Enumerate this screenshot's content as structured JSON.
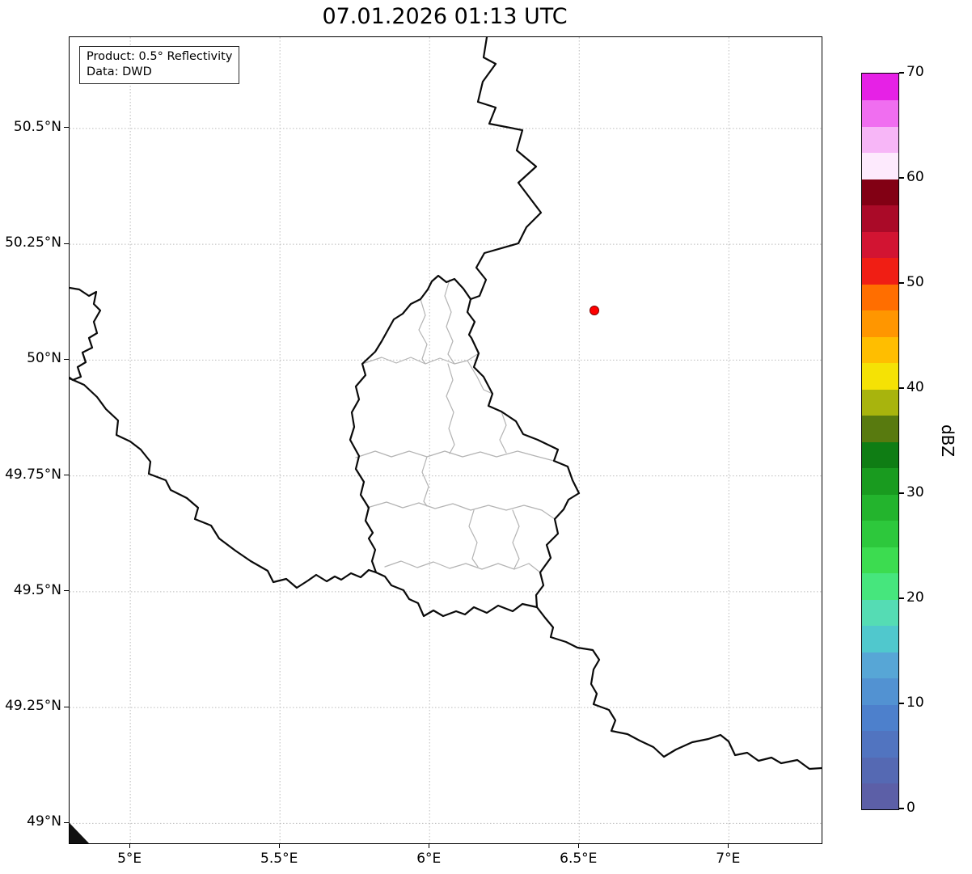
{
  "title": "07.01.2026 01:13 UTC",
  "annotation": {
    "line1": "Product: 0.5° Reflectivity",
    "line2": "Data: DWD"
  },
  "map": {
    "x_ticks": [
      {
        "label": "5°E",
        "value": 5.0
      },
      {
        "label": "5.5°E",
        "value": 5.5
      },
      {
        "label": "6°E",
        "value": 6.0
      },
      {
        "label": "6.5°E",
        "value": 6.5
      },
      {
        "label": "7°E",
        "value": 7.0
      }
    ],
    "y_ticks": [
      {
        "label": "50.5°N",
        "value": 50.5
      },
      {
        "label": "50.25°N",
        "value": 50.25
      },
      {
        "label": "50°N",
        "value": 50.0
      },
      {
        "label": "49.75°N",
        "value": 49.75
      },
      {
        "label": "49.5°N",
        "value": 49.5
      },
      {
        "label": "49.25°N",
        "value": 49.25
      },
      {
        "label": "49°N",
        "value": 49.0
      }
    ],
    "marker": {
      "name": "radar-location",
      "color": "#ff0000"
    }
  },
  "colorbar": {
    "label": "dBZ",
    "min": 0,
    "max": 70,
    "ticks": [
      {
        "label": "0",
        "value": 0
      },
      {
        "label": "10",
        "value": 10
      },
      {
        "label": "20",
        "value": 20
      },
      {
        "label": "30",
        "value": 30
      },
      {
        "label": "40",
        "value": 40
      },
      {
        "label": "50",
        "value": 50
      },
      {
        "label": "60",
        "value": 60
      },
      {
        "label": "70",
        "value": 70
      }
    ],
    "segments": [
      {
        "from": 0,
        "to": 2.5,
        "color": "#5c5fa7"
      },
      {
        "from": 2.5,
        "to": 5,
        "color": "#5569b3"
      },
      {
        "from": 5,
        "to": 7.5,
        "color": "#5174c0"
      },
      {
        "from": 7.5,
        "to": 10,
        "color": "#4d80cc"
      },
      {
        "from": 10,
        "to": 12.5,
        "color": "#5292d2"
      },
      {
        "from": 12.5,
        "to": 15,
        "color": "#57a6d6"
      },
      {
        "from": 15,
        "to": 17.5,
        "color": "#50c8cd"
      },
      {
        "from": 17.5,
        "to": 20,
        "color": "#55dcb4"
      },
      {
        "from": 20,
        "to": 22.5,
        "color": "#46e67d"
      },
      {
        "from": 22.5,
        "to": 25,
        "color": "#3cdc50"
      },
      {
        "from": 25,
        "to": 27.5,
        "color": "#2dc83c"
      },
      {
        "from": 27.5,
        "to": 30,
        "color": "#23b42d"
      },
      {
        "from": 30,
        "to": 32.5,
        "color": "#199b1f"
      },
      {
        "from": 32.5,
        "to": 35,
        "color": "#0f7d14"
      },
      {
        "from": 35,
        "to": 37.5,
        "color": "#587a0f"
      },
      {
        "from": 37.5,
        "to": 40,
        "color": "#a8b40d"
      },
      {
        "from": 40,
        "to": 42.5,
        "color": "#f5e205"
      },
      {
        "from": 42.5,
        "to": 45,
        "color": "#ffbe00"
      },
      {
        "from": 45,
        "to": 47.5,
        "color": "#ff9600"
      },
      {
        "from": 47.5,
        "to": 50,
        "color": "#ff6e00"
      },
      {
        "from": 50,
        "to": 52.5,
        "color": "#f01e14"
      },
      {
        "from": 52.5,
        "to": 55,
        "color": "#d21432"
      },
      {
        "from": 55,
        "to": 57.5,
        "color": "#aa0a28"
      },
      {
        "from": 57.5,
        "to": 60,
        "color": "#820014"
      },
      {
        "from": 60,
        "to": 62.5,
        "color": "#fdeafd"
      },
      {
        "from": 62.5,
        "to": 65,
        "color": "#f7b6f7"
      },
      {
        "from": 65,
        "to": 67.5,
        "color": "#f06ef0"
      },
      {
        "from": 67.5,
        "to": 70,
        "color": "#e621e6"
      }
    ]
  },
  "colors": {
    "country_border": "#0a0a0a",
    "canton_border": "#b3b3b3",
    "grid": "#b0b0b0",
    "background": "#ffffff"
  }
}
